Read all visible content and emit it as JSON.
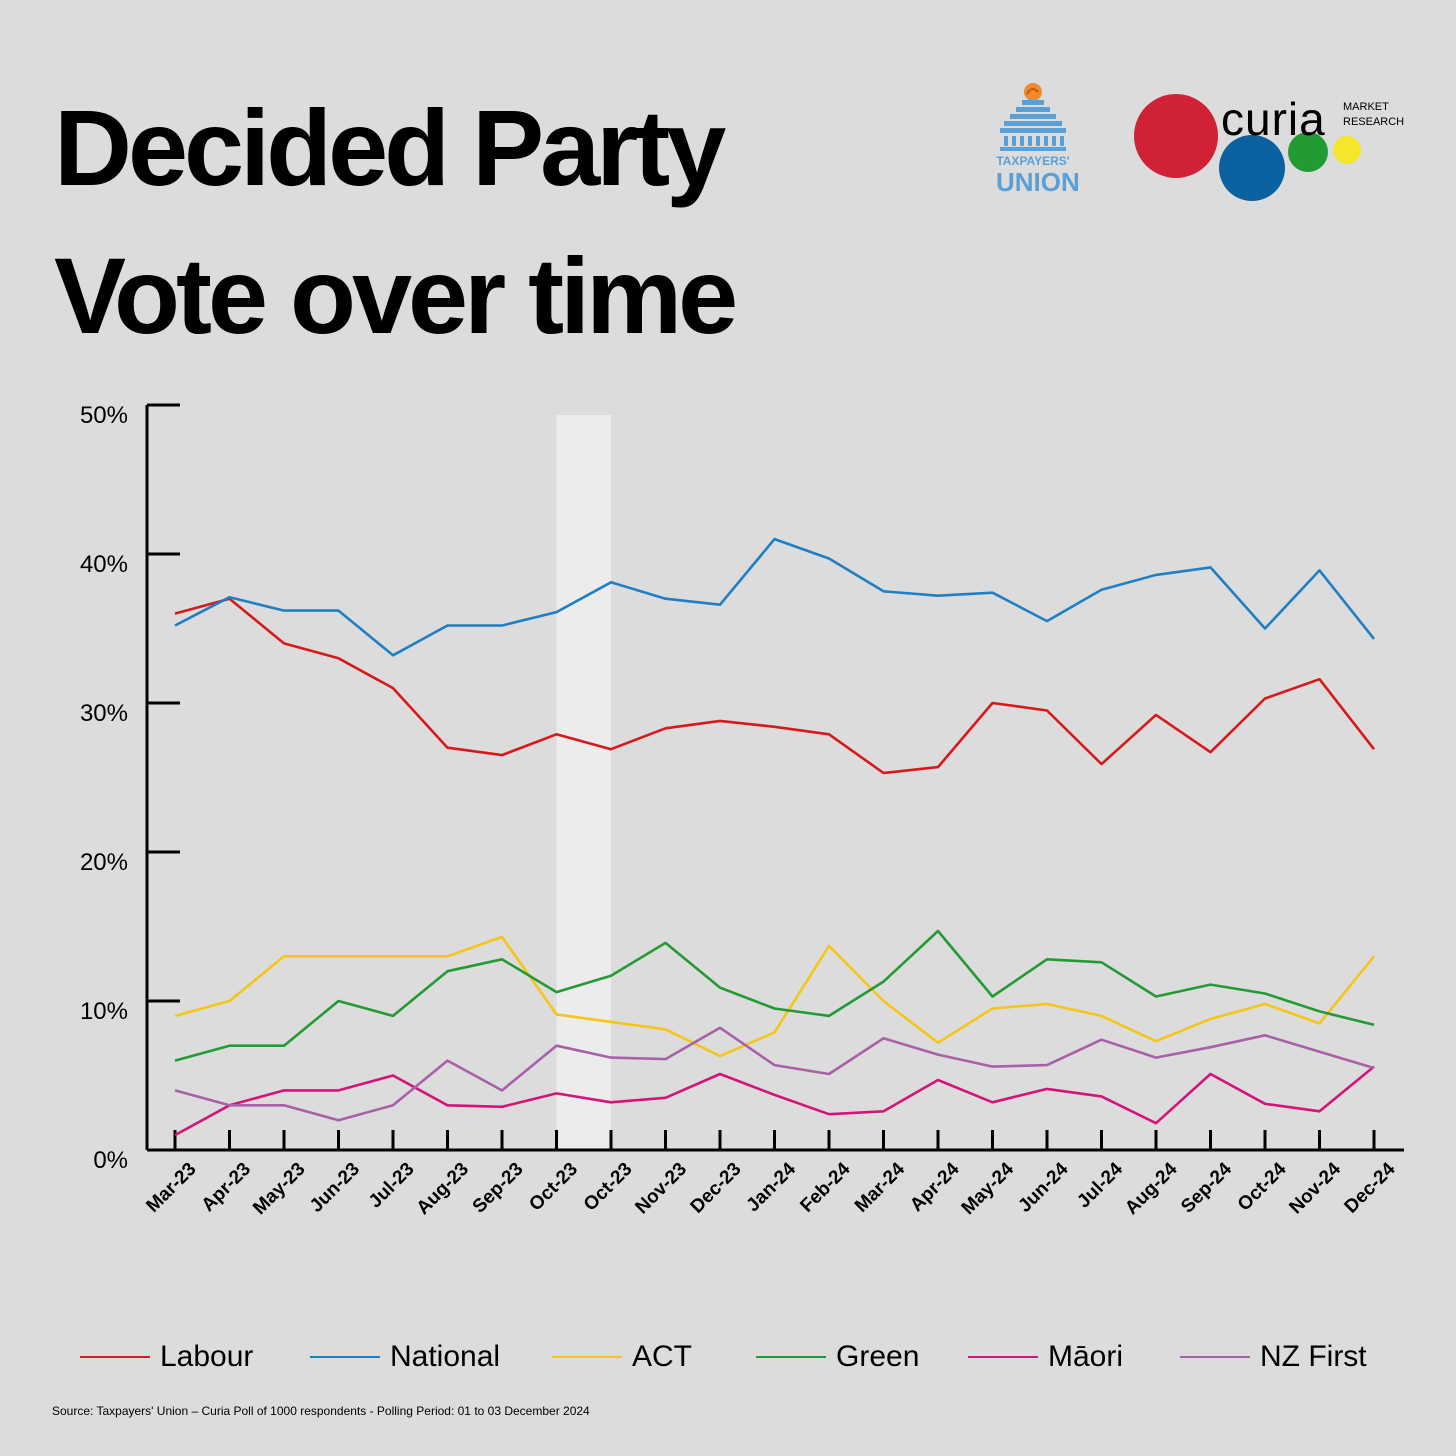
{
  "title_line1": "Decided Party",
  "title_line2": "Vote over time",
  "logos": {
    "taxpayers_line1": "TAXPAYERS'",
    "taxpayers_line2": "UNION",
    "curia_word": "curia",
    "curia_sub1": "MARKET",
    "curia_sub2": "RESEARCH"
  },
  "source": "Source: Taxpayers' Union – Curia Poll of 1000 respondents -  Polling Period: 01 to 03 December 2024",
  "chart_data": {
    "type": "line",
    "x": [
      "Mar-23",
      "Apr-23",
      "May-23",
      "Jun-23",
      "Jul-23",
      "Aug-23",
      "Sep-23",
      "Oct-23",
      "Oct-23",
      "Nov-23",
      "Dec-23",
      "Jan-24",
      "Feb-24",
      "Mar-24",
      "Apr-24",
      "May-24",
      "Jun-24",
      "Jul-24",
      "Aug-24",
      "Sep-24",
      "Oct-24",
      "Nov-24",
      "Dec-24"
    ],
    "ylim": [
      0,
      50
    ],
    "yticks": [
      0,
      10,
      20,
      30,
      40,
      50
    ],
    "ytick_labels": [
      "0%",
      "10%",
      "20%",
      "30%",
      "40%",
      "50%"
    ],
    "highlight_band": {
      "from_index": 7,
      "to_index": 8,
      "color": "#ececec"
    },
    "legend_position": "bottom",
    "series": [
      {
        "name": "Labour",
        "color": "#d7191c",
        "values": [
          36.0,
          37.0,
          34.0,
          33.0,
          31.0,
          27.0,
          26.5,
          27.9,
          26.9,
          28.3,
          28.8,
          28.4,
          27.9,
          25.3,
          25.7,
          30.0,
          29.5,
          25.9,
          29.2,
          26.7,
          30.3,
          31.6,
          26.9
        ]
      },
      {
        "name": "National",
        "color": "#1f7fc4",
        "values": [
          35.2,
          37.1,
          36.2,
          36.2,
          33.2,
          35.2,
          35.2,
          36.1,
          38.1,
          37.0,
          36.6,
          41.0,
          39.7,
          37.5,
          37.2,
          37.4,
          35.5,
          37.6,
          38.6,
          39.1,
          35.0,
          38.9,
          34.3
        ]
      },
      {
        "name": "ACT",
        "color": "#f5c518",
        "values": [
          9.0,
          10.0,
          13.0,
          13.0,
          13.0,
          13.0,
          14.3,
          9.1,
          8.6,
          8.1,
          6.3,
          7.9,
          13.7,
          10.0,
          7.2,
          9.5,
          9.8,
          9.0,
          7.3,
          8.8,
          9.8,
          8.5,
          13.0
        ]
      },
      {
        "name": "Green",
        "color": "#239b34",
        "values": [
          6.0,
          7.0,
          7.0,
          10.0,
          9.0,
          12.0,
          12.8,
          10.6,
          11.7,
          13.9,
          10.9,
          9.5,
          9.0,
          11.3,
          14.7,
          10.3,
          12.8,
          12.6,
          10.3,
          11.1,
          10.5,
          9.3,
          8.4
        ]
      },
      {
        "name": "Māori",
        "color": "#d5147a",
        "values": [
          1.0,
          3.0,
          4.0,
          4.0,
          5.0,
          3.0,
          2.9,
          3.8,
          3.2,
          3.5,
          5.1,
          3.7,
          2.4,
          2.6,
          4.7,
          3.2,
          4.1,
          3.6,
          1.8,
          5.1,
          3.1,
          2.6,
          5.6
        ]
      },
      {
        "name": "NZ First",
        "color": "#a860a8",
        "values": [
          4.0,
          3.0,
          3.0,
          2.0,
          3.0,
          6.0,
          4.0,
          7.0,
          6.2,
          6.1,
          8.2,
          5.7,
          5.1,
          7.5,
          6.4,
          5.6,
          5.7,
          7.4,
          6.2,
          6.9,
          7.7,
          6.6,
          5.5
        ]
      }
    ]
  }
}
